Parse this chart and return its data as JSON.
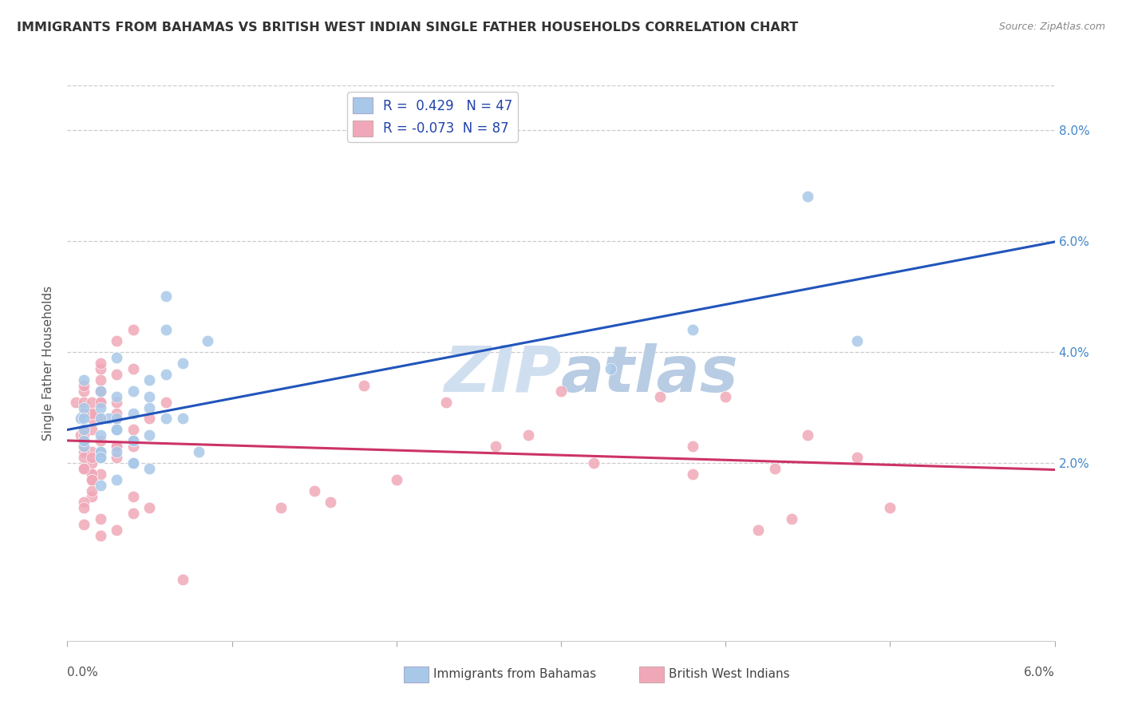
{
  "title": "IMMIGRANTS FROM BAHAMAS VS BRITISH WEST INDIAN SINGLE FATHER HOUSEHOLDS CORRELATION CHART",
  "source": "Source: ZipAtlas.com",
  "ylabel": "Single Father Households",
  "xlim": [
    0.0,
    0.06
  ],
  "ylim": [
    -0.012,
    0.088
  ],
  "yticks": [
    0.02,
    0.04,
    0.06,
    0.08
  ],
  "xticks": [
    0.0,
    0.01,
    0.02,
    0.03,
    0.04,
    0.05,
    0.06
  ],
  "blue_R": 0.429,
  "blue_N": 47,
  "pink_R": -0.073,
  "pink_N": 87,
  "blue_color": "#a8c8e8",
  "pink_color": "#f0a8b8",
  "blue_line_color": "#2255bb",
  "pink_line_color": "#cc3366",
  "watermark_color": "#d0dff0",
  "legend_label_blue": "Immigrants from Bahamas",
  "legend_label_pink": "British West Indians",
  "blue_scatter_x": [
    0.0008,
    0.0025,
    0.004,
    0.005,
    0.002,
    0.006,
    0.003,
    0.007,
    0.0085,
    0.002,
    0.004,
    0.001,
    0.003,
    0.005,
    0.006,
    0.002,
    0.001,
    0.004,
    0.003,
    0.002,
    0.001,
    0.005,
    0.003,
    0.006,
    0.002,
    0.004,
    0.001,
    0.003,
    0.002,
    0.005,
    0.007,
    0.004,
    0.001,
    0.002,
    0.003,
    0.006,
    0.002,
    0.004,
    0.001,
    0.008,
    0.003,
    0.005,
    0.002,
    0.038,
    0.033,
    0.048,
    0.045
  ],
  "blue_scatter_y": [
    0.028,
    0.028,
    0.033,
    0.032,
    0.03,
    0.036,
    0.028,
    0.038,
    0.042,
    0.022,
    0.024,
    0.03,
    0.039,
    0.025,
    0.028,
    0.033,
    0.035,
    0.02,
    0.026,
    0.028,
    0.023,
    0.03,
    0.022,
    0.044,
    0.025,
    0.02,
    0.028,
    0.032,
    0.021,
    0.035,
    0.028,
    0.029,
    0.024,
    0.022,
    0.026,
    0.05,
    0.021,
    0.024,
    0.026,
    0.022,
    0.017,
    0.019,
    0.016,
    0.044,
    0.037,
    0.042,
    0.068
  ],
  "pink_scatter_x": [
    0.0005,
    0.001,
    0.002,
    0.0008,
    0.003,
    0.0015,
    0.002,
    0.001,
    0.004,
    0.0015,
    0.001,
    0.002,
    0.003,
    0.0015,
    0.001,
    0.002,
    0.0015,
    0.003,
    0.001,
    0.0015,
    0.002,
    0.001,
    0.004,
    0.0015,
    0.003,
    0.001,
    0.002,
    0.0015,
    0.001,
    0.003,
    0.0015,
    0.002,
    0.001,
    0.004,
    0.0015,
    0.002,
    0.001,
    0.003,
    0.0015,
    0.002,
    0.001,
    0.005,
    0.0015,
    0.003,
    0.001,
    0.002,
    0.006,
    0.0015,
    0.004,
    0.001,
    0.003,
    0.0015,
    0.001,
    0.002,
    0.005,
    0.0015,
    0.004,
    0.001,
    0.002,
    0.003,
    0.0015,
    0.001,
    0.002,
    0.007,
    0.0015,
    0.004,
    0.001,
    0.038,
    0.032,
    0.038,
    0.048,
    0.045,
    0.043,
    0.036,
    0.05,
    0.044,
    0.042,
    0.04,
    0.028,
    0.018,
    0.023,
    0.026,
    0.03,
    0.013,
    0.016,
    0.02,
    0.015
  ],
  "pink_scatter_y": [
    0.031,
    0.033,
    0.028,
    0.025,
    0.042,
    0.022,
    0.037,
    0.026,
    0.044,
    0.028,
    0.031,
    0.038,
    0.023,
    0.029,
    0.034,
    0.022,
    0.026,
    0.036,
    0.022,
    0.018,
    0.031,
    0.024,
    0.037,
    0.02,
    0.028,
    0.026,
    0.033,
    0.029,
    0.023,
    0.031,
    0.018,
    0.035,
    0.021,
    0.026,
    0.017,
    0.024,
    0.019,
    0.023,
    0.031,
    0.018,
    0.026,
    0.028,
    0.021,
    0.029,
    0.025,
    0.033,
    0.031,
    0.018,
    0.023,
    0.019,
    0.021,
    0.017,
    0.029,
    0.031,
    0.012,
    0.014,
    0.011,
    0.013,
    0.01,
    0.008,
    0.015,
    0.009,
    0.007,
    -0.001,
    0.017,
    0.014,
    0.012,
    0.023,
    0.02,
    0.018,
    0.021,
    0.025,
    0.019,
    0.032,
    0.012,
    0.01,
    0.008,
    0.032,
    0.025,
    0.034,
    0.031,
    0.023,
    0.033,
    0.012,
    0.013,
    0.017,
    0.015
  ]
}
